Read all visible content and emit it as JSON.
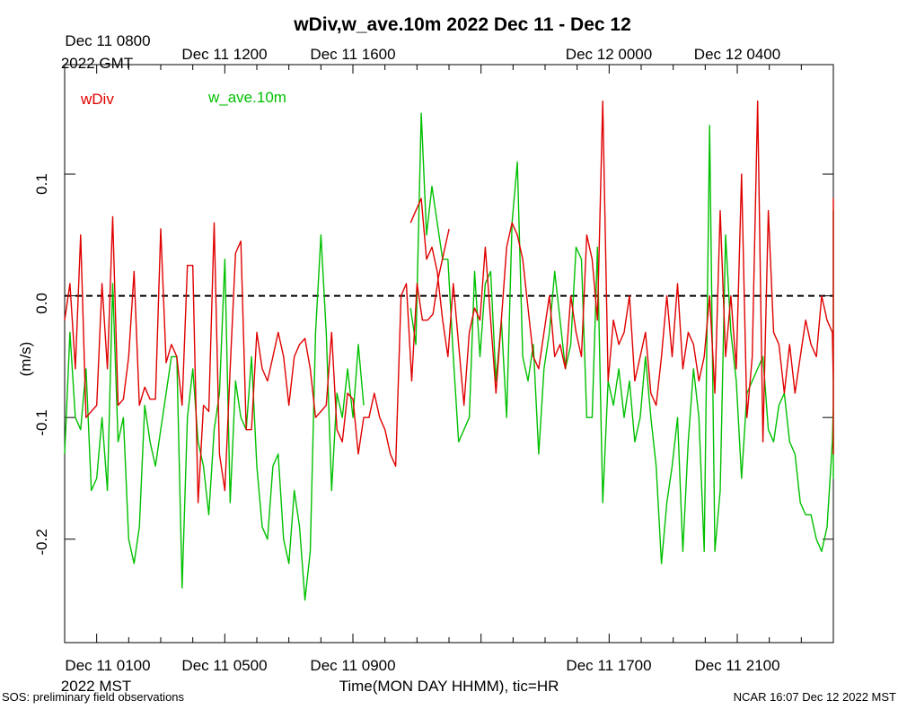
{
  "chart_data": {
    "type": "line",
    "title": "wDiv,w_ave.10m 2022 Dec 11 - Dec 12",
    "ylabel": "(m/s)",
    "xlabel": "Time(MON DAY HHMM), tic=HR",
    "ylim": [
      -0.285,
      0.19
    ],
    "y_ticks": [
      -0.2,
      -0.1,
      0.0,
      0.1
    ],
    "y_tick_labels": [
      "-0.2",
      "-0.1",
      "0.0",
      "0.1"
    ],
    "x_range_hours": [
      0,
      24
    ],
    "top_axis_labels": [
      {
        "hour": 1,
        "label": "Dec 11 0800"
      },
      {
        "hour": 5,
        "label": "Dec 11 1200"
      },
      {
        "hour": 9,
        "label": "Dec 11 1600"
      },
      {
        "hour": 17,
        "label": "Dec 12 0000"
      },
      {
        "hour": 21,
        "label": "Dec 12 0400"
      }
    ],
    "top_axis_extra": "2022 GMT",
    "bottom_axis_labels": [
      {
        "hour": 1,
        "label": "Dec 11 0100"
      },
      {
        "hour": 5,
        "label": "Dec 11 0500"
      },
      {
        "hour": 9,
        "label": "Dec 11 0900"
      },
      {
        "hour": 17,
        "label": "Dec 11 1700"
      },
      {
        "hour": 21,
        "label": "Dec 11 2100"
      }
    ],
    "bottom_axis_extra": "2022 MST",
    "reference_line": 0.0,
    "series": [
      {
        "name": "wDiv",
        "color": "#e00000",
        "segments": [
          {
            "x0": 0.0,
            "dx": 0.1667,
            "values": [
              -0.02,
              0.01,
              -0.06,
              0.05,
              -0.1,
              -0.095,
              -0.09,
              0.01,
              -0.06,
              0.065,
              -0.09,
              -0.085,
              -0.05,
              0.02,
              -0.09,
              -0.075,
              -0.085,
              -0.085,
              0.055,
              -0.055,
              -0.04,
              -0.05,
              -0.09,
              0.025,
              0.025,
              -0.17,
              -0.09,
              -0.095,
              0.06,
              -0.13,
              -0.16,
              -0.06,
              0.035,
              0.045,
              -0.11,
              -0.11,
              -0.03,
              -0.06,
              -0.07,
              -0.05,
              -0.03,
              -0.05,
              -0.09,
              -0.05,
              -0.04,
              -0.035,
              -0.06,
              -0.1,
              -0.095,
              -0.09,
              -0.03,
              -0.11,
              -0.12,
              -0.08,
              -0.085,
              -0.13,
              -0.1,
              -0.1,
              -0.08,
              -0.1,
              -0.11,
              -0.13,
              -0.14,
              0.0,
              0.01,
              -0.07,
              0.01,
              -0.02,
              -0.02,
              -0.015,
              0.015,
              0.035,
              0.055
            ]
          },
          {
            "x0": 10.8,
            "dx": 0.1667,
            "values": [
              0.06,
              0.07,
              0.08,
              0.03,
              0.04,
              0.02,
              -0.02,
              -0.05,
              0.01,
              -0.04,
              -0.09,
              -0.03,
              -0.01,
              -0.02,
              0.04,
              -0.02,
              -0.08,
              -0.02,
              0.04,
              0.06,
              0.05,
              0.03,
              -0.01,
              -0.05,
              -0.06,
              -0.03,
              0.0,
              -0.05,
              -0.04,
              -0.06,
              0.0,
              -0.03,
              -0.05,
              0.05,
              0.03,
              -0.02,
              0.16,
              -0.07,
              -0.02,
              -0.04,
              -0.03,
              0.0,
              -0.07,
              -0.05,
              -0.03,
              -0.08,
              -0.09,
              -0.05,
              0.0,
              -0.05,
              0.01,
              -0.06,
              -0.03,
              -0.04,
              -0.07,
              -0.05,
              0.0,
              -0.08,
              0.07,
              -0.05,
              0.0,
              -0.06,
              0.1,
              -0.1,
              -0.05,
              0.16,
              -0.12,
              0.07,
              -0.03,
              -0.04,
              -0.08,
              -0.04,
              -0.08,
              -0.05,
              -0.02,
              -0.04,
              -0.05,
              0.0,
              -0.02,
              -0.03,
              -0.07,
              -0.05,
              -0.08,
              -0.05,
              -0.09,
              -0.11,
              -0.13,
              -0.06,
              -0.07,
              -0.08,
              -0.07,
              -0.04,
              -0.1,
              -0.06,
              -0.1,
              -0.11,
              -0.09,
              -0.06,
              0.0,
              -0.08,
              0.06,
              0.05,
              -0.02,
              0.08,
              0.07,
              0.03,
              -0.03,
              -0.05,
              0.03,
              0.0,
              -0.04,
              -0.06,
              -0.04
            ]
          }
        ]
      },
      {
        "name": "w_ave.10m",
        "color": "#00c000",
        "segments": [
          {
            "x0": 0.0,
            "dx": 0.1667,
            "values": [
              -0.13,
              -0.03,
              -0.1,
              -0.11,
              -0.06,
              -0.16,
              -0.15,
              -0.1,
              -0.16,
              0.01,
              -0.12,
              -0.1,
              -0.2,
              -0.22,
              -0.19,
              -0.09,
              -0.12,
              -0.14,
              -0.11,
              -0.08,
              -0.05,
              -0.05,
              -0.24,
              -0.1,
              -0.06,
              -0.12,
              -0.14,
              -0.18,
              -0.11,
              -0.08,
              0.03,
              -0.17,
              -0.07,
              -0.1,
              -0.11,
              -0.05,
              -0.14,
              -0.19,
              -0.2,
              -0.14,
              -0.13,
              -0.2,
              -0.22,
              -0.16,
              -0.19,
              -0.25,
              -0.21,
              -0.03,
              0.05,
              -0.03,
              -0.16,
              -0.08,
              -0.1,
              -0.06,
              -0.1,
              -0.04,
              -0.09
            ]
          },
          {
            "x0": 10.8,
            "dx": 0.1667,
            "values": [
              -0.01,
              -0.04,
              0.15,
              0.05,
              0.09,
              0.06,
              0.03,
              0.03,
              -0.05,
              -0.12,
              -0.11,
              -0.1,
              0.02,
              -0.05,
              0.01,
              0.02,
              -0.07,
              -0.02,
              -0.1,
              0.06,
              0.11,
              -0.05,
              -0.07,
              -0.04,
              -0.13,
              -0.06,
              -0.03,
              0.02,
              -0.02,
              -0.06,
              -0.04,
              0.04,
              0.03,
              -0.1,
              -0.1,
              0.04,
              -0.17,
              -0.07,
              -0.09,
              -0.06,
              -0.1,
              -0.07,
              -0.12,
              -0.1,
              -0.05,
              -0.1,
              -0.14,
              -0.22,
              -0.17,
              -0.14,
              -0.1,
              -0.21,
              -0.12,
              -0.06,
              -0.1,
              -0.21,
              0.14,
              -0.21,
              -0.16,
              0.05,
              -0.03,
              -0.07,
              -0.15,
              -0.08,
              -0.07,
              -0.06,
              -0.05,
              -0.11,
              -0.12,
              -0.09,
              -0.08,
              -0.12,
              -0.13,
              -0.17,
              -0.18,
              -0.18,
              -0.2,
              -0.21,
              -0.19,
              -0.12,
              -0.09,
              -0.06,
              -0.05,
              -0.08,
              -0.08,
              0.01,
              -0.01,
              0.05,
              0.03,
              0.05,
              0.07,
              0.02,
              -0.12,
              0.04,
              -0.15,
              0.02,
              0.03,
              -0.06,
              0.01
            ]
          }
        ]
      }
    ]
  },
  "footer": {
    "left": "SOS: preliminary field observations",
    "right": "NCAR 16:07 Dec 12 2022 MST"
  }
}
